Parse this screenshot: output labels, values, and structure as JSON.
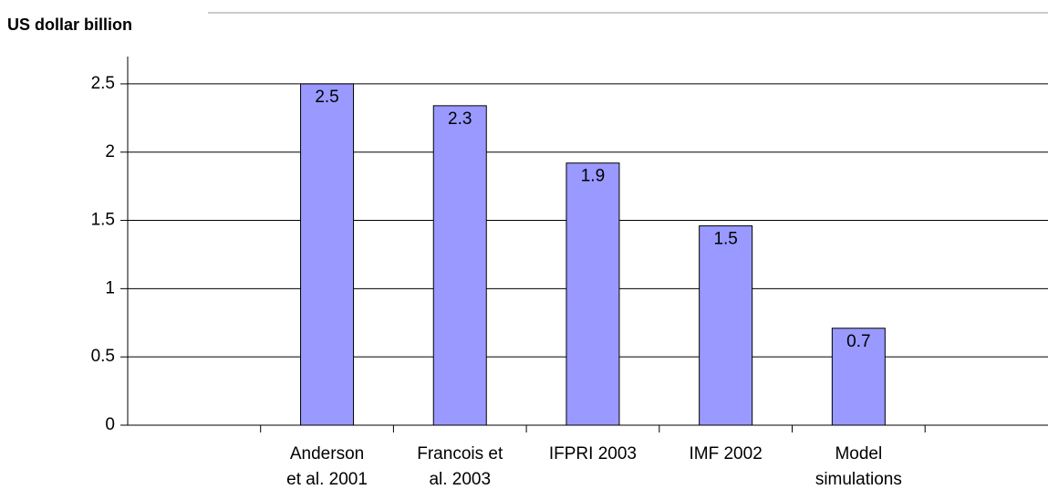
{
  "chart_data": {
    "type": "bar",
    "title": "US dollar billion",
    "categories": [
      null,
      "Anderson\net al. 2001",
      "Francois et\nal. 2003",
      "IFPRI 2003",
      "IMF 2002",
      "Model\nsimulations",
      null
    ],
    "values": [
      null,
      2.5,
      2.34,
      1.92,
      1.46,
      0.71,
      null
    ],
    "value_labels": [
      null,
      "2.5",
      "2.3",
      "1.9",
      "1.5",
      "0.7",
      null
    ],
    "color": "#9999ff",
    "ylim": [
      0,
      2.7
    ],
    "yticks": [
      0,
      0.5,
      1,
      1.5,
      2,
      2.5
    ],
    "grid": true
  }
}
